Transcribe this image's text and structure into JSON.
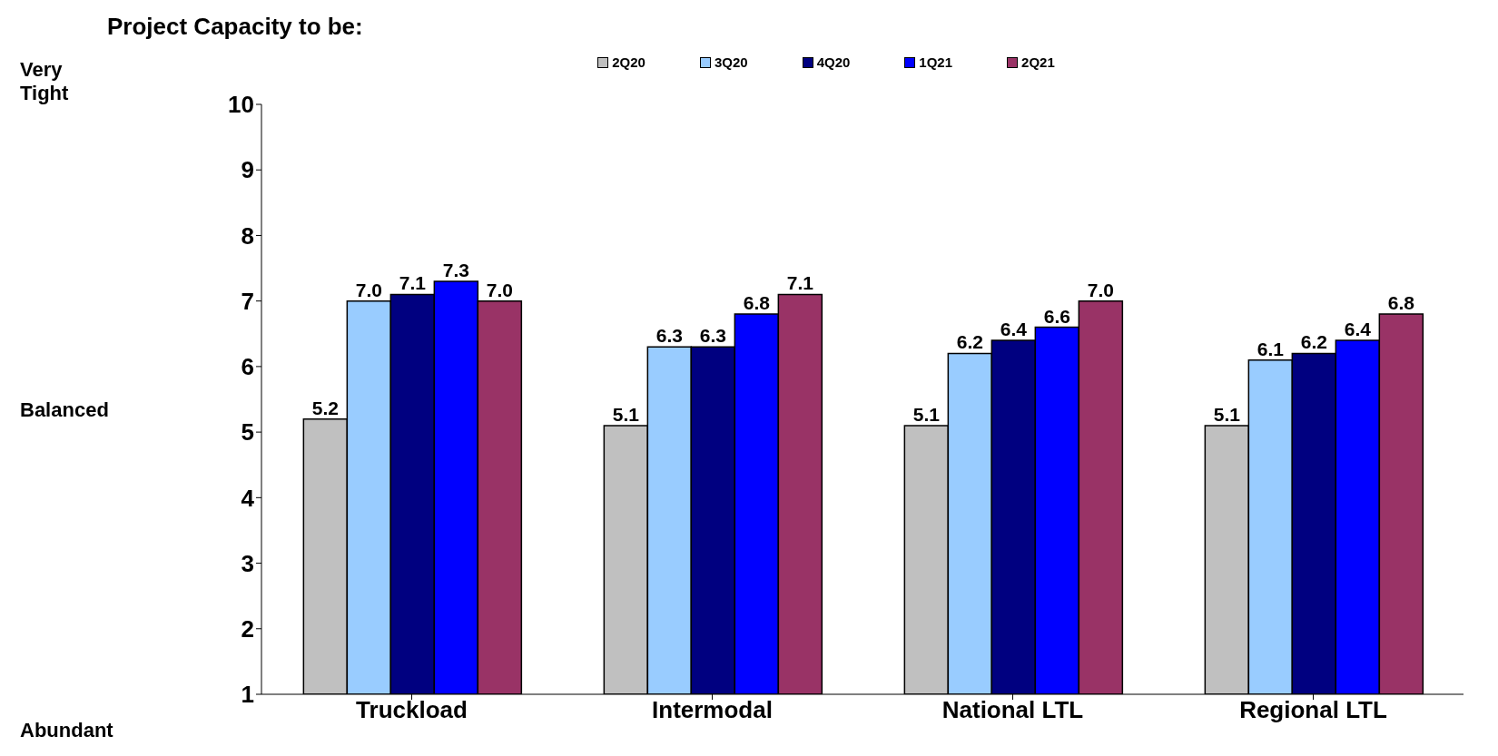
{
  "chart_data": {
    "type": "bar",
    "title": "Project Capacity to be:",
    "categories": [
      "Truckload",
      "Intermodal",
      "National LTL",
      "Regional LTL"
    ],
    "series": [
      {
        "name": "2Q20",
        "color": "#c0c0c0",
        "values": [
          5.2,
          5.1,
          5.1,
          5.1
        ],
        "value_labels": [
          "5.2",
          "5.1",
          "5.1",
          "5.1"
        ]
      },
      {
        "name": "3Q20",
        "color": "#99ccff",
        "values": [
          7.0,
          6.3,
          6.2,
          6.1
        ],
        "value_labels": [
          "7.0",
          "6.3",
          "6.2",
          "6.1"
        ]
      },
      {
        "name": "4Q20",
        "color": "#000080",
        "values": [
          7.1,
          6.3,
          6.4,
          6.2
        ],
        "value_labels": [
          "7.1",
          "6.3",
          "6.4",
          "6.2"
        ]
      },
      {
        "name": "1Q21",
        "color": "#0000ff",
        "values": [
          7.3,
          6.8,
          6.6,
          6.4
        ],
        "value_labels": [
          "7.3",
          "6.8",
          "6.6",
          "6.4"
        ]
      },
      {
        "name": "2Q21",
        "color": "#993366",
        "values": [
          7.0,
          7.1,
          7.0,
          6.8
        ],
        "value_labels": [
          "7.0",
          "7.1",
          "7.0",
          "6.8"
        ]
      }
    ],
    "ylim": [
      1,
      10
    ],
    "yticks": [
      1,
      2,
      3,
      4,
      5,
      6,
      7,
      8,
      9,
      10
    ],
    "grid": false,
    "legend": "top",
    "annotations": [
      "Very Tight",
      "Balanced",
      "Abundant"
    ]
  }
}
